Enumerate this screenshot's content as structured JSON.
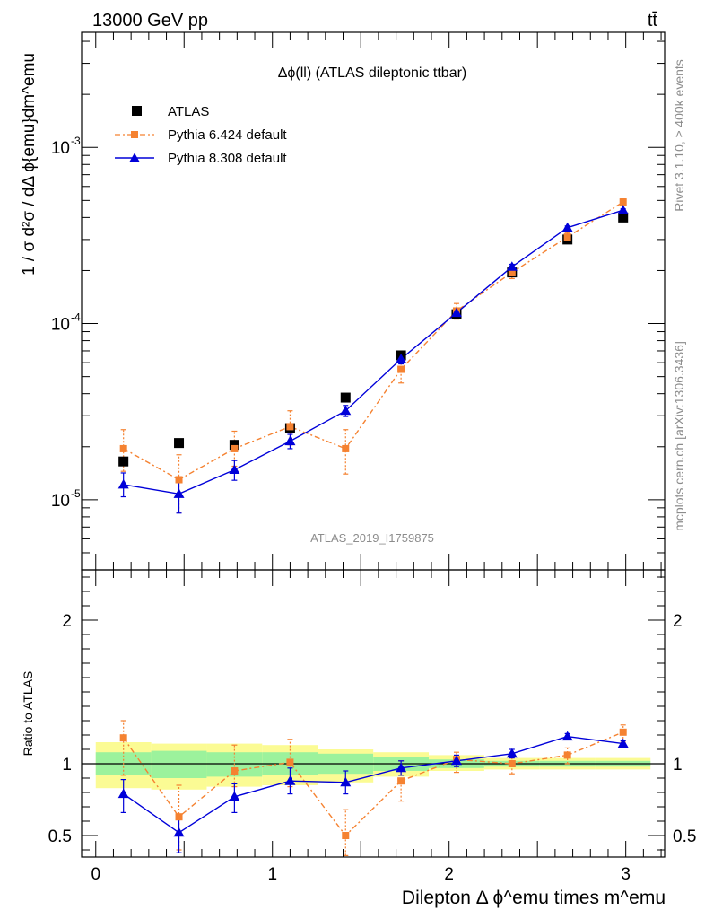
{
  "header": {
    "energy_label": "13000 GeV pp",
    "process_label": "tt̄"
  },
  "side_text": {
    "rivet": "Rivet 3.1.10, ≥ 400k events",
    "mcplots": "mcplots.cern.ch [arXiv:1306.3436]"
  },
  "colors": {
    "atlas": "#000000",
    "pythia6": "#f58231",
    "pythia8": "#0000d9",
    "band_inner": "#9cf29c",
    "band_outer": "#fbfb94"
  },
  "chart_data": [
    {
      "type": "scatter",
      "panel": "main",
      "title": "Δϕ(ll) (ATLAS dileptonic ttbar)",
      "watermark": "ATLAS_2019_I1759875",
      "ylabel": "1 / σ  d²σ / dΔ ϕ{emu}dm^emu",
      "yscale": "log",
      "ylim": [
        4e-06,
        0.0045
      ],
      "xlim": [
        -0.08,
        3.22
      ],
      "x": [
        0.157,
        0.471,
        0.785,
        1.1,
        1.414,
        1.728,
        2.042,
        2.356,
        2.67,
        2.985
      ],
      "y_tick_labels": [
        "10^-5",
        "10^-4",
        "10^-3"
      ],
      "series": [
        {
          "name": "ATLAS",
          "values": [
            1.65e-05,
            2.1e-05,
            2.05e-05,
            2.55e-05,
            3.8e-05,
            6.6e-05,
            0.000113,
            0.000195,
            0.0003,
            0.0004
          ]
        },
        {
          "name": "Pythia 6.424 default",
          "values": [
            1.95e-05,
            1.3e-05,
            1.95e-05,
            2.6e-05,
            1.95e-05,
            5.5e-05,
            0.000118,
            0.000195,
            0.00031,
            0.00049
          ],
          "err_lo": [
            1.45e-05,
            8.5e-06,
            1.55e-05,
            2.05e-05,
            1.4e-05,
            4.6e-05,
            0.000106,
            0.00018,
            0.000292,
            0.00047
          ],
          "err_hi": [
            2.5e-05,
            1.8e-05,
            2.45e-05,
            3.2e-05,
            2.5e-05,
            6.4e-05,
            0.00013,
            0.00021,
            0.000328,
            0.00051
          ]
        },
        {
          "name": "Pythia 8.308 default",
          "values": [
            1.22e-05,
            1.08e-05,
            1.48e-05,
            2.15e-05,
            3.2e-05,
            6.3e-05,
            0.000115,
            0.00021,
            0.00035,
            0.00044
          ],
          "err_lo": [
            1.04e-05,
            8.4e-06,
            1.29e-05,
            1.95e-05,
            2.97e-05,
            5.9e-05,
            0.000109,
            0.000203,
            0.000342,
            0.000432
          ],
          "err_hi": [
            1.42e-05,
            1.32e-05,
            1.67e-05,
            2.35e-05,
            3.43e-05,
            6.7e-05,
            0.000121,
            0.000217,
            0.000358,
            0.000448
          ]
        }
      ]
    },
    {
      "type": "scatter",
      "panel": "ratio",
      "ylabel": "Ratio to ATLAS",
      "xlabel": "Dilepton Δ ϕ^emu times m^emu",
      "ylim": [
        0.35,
        2.35
      ],
      "xlim": [
        -0.08,
        3.22
      ],
      "x_ticks": [
        0,
        1,
        2,
        3
      ],
      "y_ticks": [
        0.5,
        1,
        2
      ],
      "band_edges": [
        0.0,
        0.314,
        0.628,
        0.942,
        1.257,
        1.571,
        1.885,
        2.199,
        2.513,
        2.827,
        3.14
      ],
      "band_inner": [
        [
          0.92,
          1.08
        ],
        [
          0.9,
          1.09
        ],
        [
          0.91,
          1.08
        ],
        [
          0.92,
          1.08
        ],
        [
          0.93,
          1.07
        ],
        [
          0.95,
          1.05
        ],
        [
          0.97,
          1.03
        ],
        [
          0.98,
          1.02
        ],
        [
          0.98,
          1.02
        ],
        [
          0.98,
          1.02
        ]
      ],
      "band_outer": [
        [
          0.83,
          1.15
        ],
        [
          0.82,
          1.14
        ],
        [
          0.84,
          1.14
        ],
        [
          0.85,
          1.13
        ],
        [
          0.87,
          1.1
        ],
        [
          0.91,
          1.08
        ],
        [
          0.95,
          1.06
        ],
        [
          0.96,
          1.04
        ],
        [
          0.96,
          1.04
        ],
        [
          0.96,
          1.04
        ]
      ],
      "series": [
        {
          "name": "Pythia 6.424 default",
          "values": [
            1.18,
            0.63,
            0.95,
            1.01,
            0.5,
            0.88,
            1.03,
            1.0,
            1.06,
            1.22
          ],
          "err_lo": [
            0.92,
            0.4,
            0.84,
            0.84,
            0.36,
            0.74,
            0.94,
            0.93,
            1.0,
            1.15
          ],
          "err_hi": [
            1.3,
            0.85,
            1.13,
            1.17,
            0.68,
            1.02,
            1.08,
            1.06,
            1.11,
            1.27
          ]
        },
        {
          "name": "Pythia 8.308 default",
          "values": [
            0.79,
            0.52,
            0.77,
            0.88,
            0.87,
            0.97,
            1.02,
            1.07,
            1.19,
            1.14
          ],
          "err_lo": [
            0.66,
            0.38,
            0.66,
            0.79,
            0.79,
            0.92,
            0.98,
            1.04,
            1.17,
            1.12
          ],
          "err_hi": [
            0.89,
            0.63,
            0.86,
            0.97,
            0.95,
            1.02,
            1.06,
            1.1,
            1.21,
            1.16
          ]
        }
      ]
    }
  ]
}
